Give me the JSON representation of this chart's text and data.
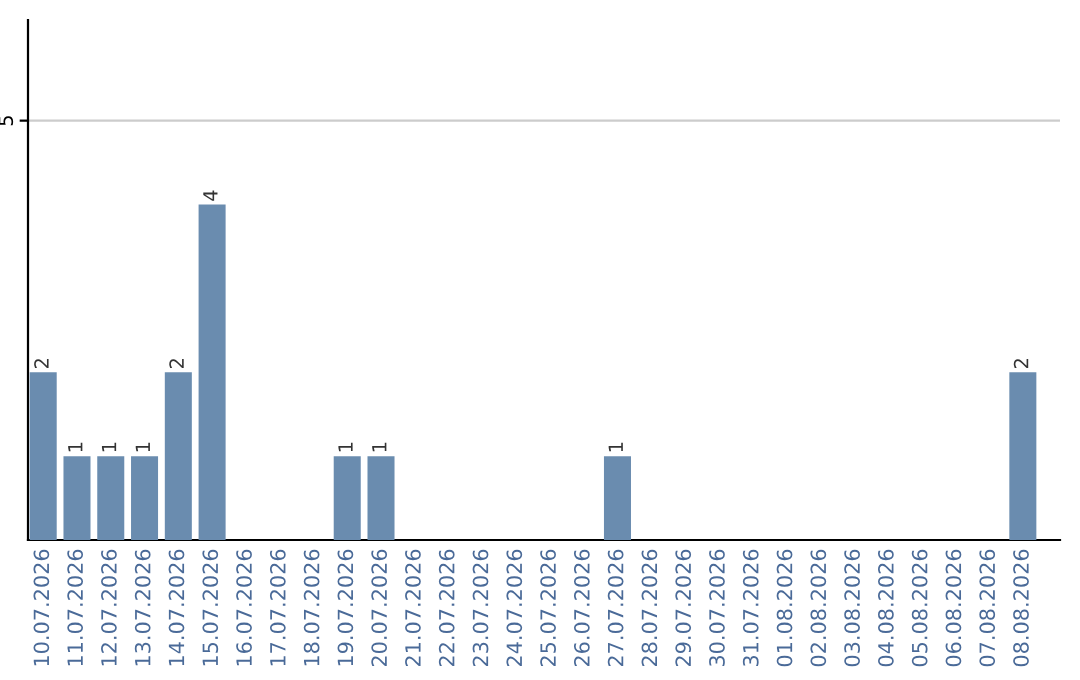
{
  "chart_data": {
    "type": "bar",
    "categories": [
      "10.07.2026",
      "11.07.2026",
      "12.07.2026",
      "13.07.2026",
      "14.07.2026",
      "15.07.2026",
      "16.07.2026",
      "17.07.2026",
      "18.07.2026",
      "19.07.2026",
      "20.07.2026",
      "21.07.2026",
      "22.07.2026",
      "23.07.2026",
      "24.07.2026",
      "25.07.2026",
      "26.07.2026",
      "27.07.2026",
      "28.07.2026",
      "29.07.2026",
      "30.07.2026",
      "31.07.2026",
      "01.08.2026",
      "02.08.2026",
      "03.08.2026",
      "04.08.2026",
      "05.08.2026",
      "06.08.2026",
      "07.08.2026",
      "08.08.2026"
    ],
    "values": [
      2,
      1,
      1,
      1,
      2,
      4,
      0,
      0,
      0,
      1,
      1,
      0,
      0,
      0,
      0,
      0,
      0,
      1,
      0,
      0,
      0,
      0,
      0,
      0,
      0,
      0,
      0,
      0,
      0,
      2
    ],
    "value_labels": [
      "2",
      "1",
      "1",
      "1",
      "2",
      "4",
      null,
      null,
      null,
      "1",
      "1",
      null,
      null,
      null,
      null,
      null,
      null,
      "1",
      null,
      null,
      null,
      null,
      null,
      null,
      null,
      null,
      null,
      null,
      null,
      "2"
    ],
    "color": "#6a8caf",
    "ylim": [
      0,
      6.2
    ],
    "yticks": [
      5
    ],
    "grid": "y"
  }
}
